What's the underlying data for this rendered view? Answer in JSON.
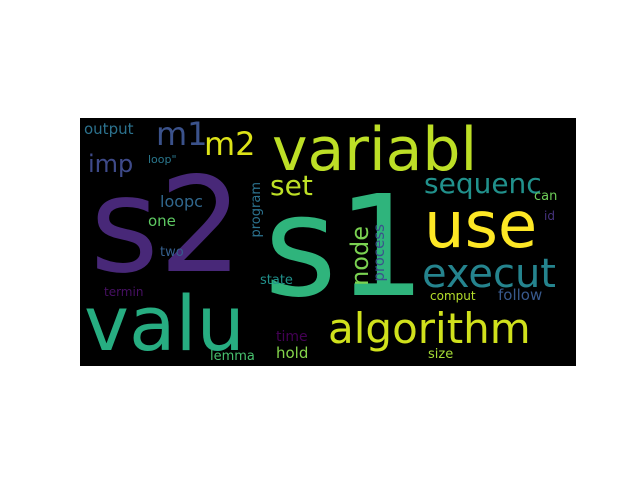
{
  "words": [
    {
      "text": "s2",
      "color": "#482878"
    },
    {
      "text": "s1",
      "color": "#2fb47c"
    },
    {
      "text": "valu",
      "color": "#27ad81"
    },
    {
      "text": "variabl",
      "color": "#bddf26"
    },
    {
      "text": "use",
      "color": "#fde725"
    },
    {
      "text": "algorithm",
      "color": "#d0e11c"
    },
    {
      "text": "execut",
      "color": "#25848e"
    },
    {
      "text": "m1",
      "color": "#3b528b"
    },
    {
      "text": "m2",
      "color": "#dde318"
    },
    {
      "text": "set",
      "color": "#bddf26"
    },
    {
      "text": "sequenc",
      "color": "#21918c"
    },
    {
      "text": "node",
      "color": "#7ad151"
    },
    {
      "text": "imp",
      "color": "#3e4a89"
    },
    {
      "text": "output",
      "color": "#2c728e"
    },
    {
      "text": "loopc",
      "color": "#31688e"
    },
    {
      "text": "one",
      "color": "#5ec962"
    },
    {
      "text": "two",
      "color": "#355f8d"
    },
    {
      "text": "process",
      "color": "#3b528b"
    },
    {
      "text": "program",
      "color": "#2c728e"
    },
    {
      "text": "follow",
      "color": "#38598c"
    },
    {
      "text": "can",
      "color": "#6ece58"
    },
    {
      "text": "id",
      "color": "#46337e"
    },
    {
      "text": "comput",
      "color": "#b5de2b"
    },
    {
      "text": "state",
      "color": "#21918c"
    },
    {
      "text": "time",
      "color": "#440154"
    },
    {
      "text": "hold",
      "color": "#84d44b"
    },
    {
      "text": "lemma",
      "color": "#48c16e"
    },
    {
      "text": "size",
      "color": "#a5db36"
    },
    {
      "text": "termin",
      "color": "#471063"
    },
    {
      "text": "loop\"",
      "color": "#2a788e"
    }
  ]
}
